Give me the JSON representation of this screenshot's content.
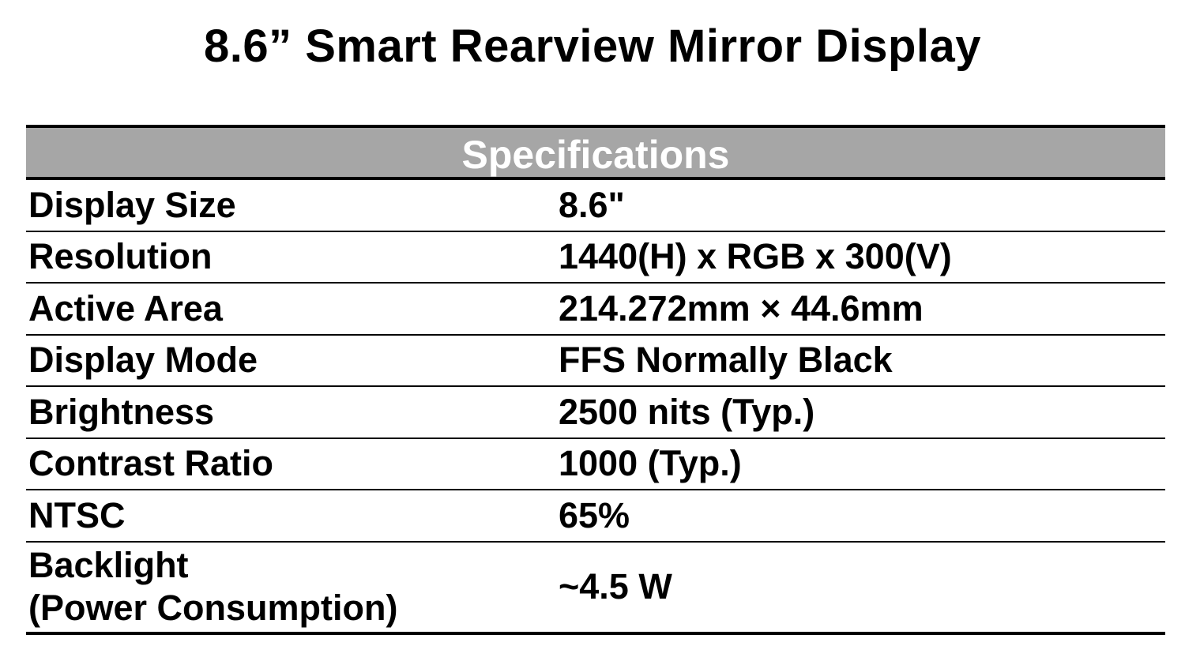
{
  "title": "8.6” Smart Rearview Mirror Display",
  "table": {
    "header": "Specifications",
    "rows": [
      {
        "label": "Display Size",
        "value": "8.6\""
      },
      {
        "label": "Resolution",
        "value": "1440(H) x RGB x 300(V)"
      },
      {
        "label": "Active Area",
        "value": "214.272mm × 44.6mm"
      },
      {
        "label": "Display Mode",
        "value": "FFS Normally Black"
      },
      {
        "label": "Brightness",
        "value": "2500 nits (Typ.)"
      },
      {
        "label": "Contrast Ratio",
        "value": "1000 (Typ.)"
      },
      {
        "label": "NTSC",
        "value": "65%"
      },
      {
        "label": "Backlight\n(Power Consumption)",
        "value": "~4.5 W"
      }
    ]
  },
  "colors": {
    "header_background": "#a6a6a6",
    "header_text": "#ffffff",
    "text": "#000000",
    "rules": "#000000"
  }
}
